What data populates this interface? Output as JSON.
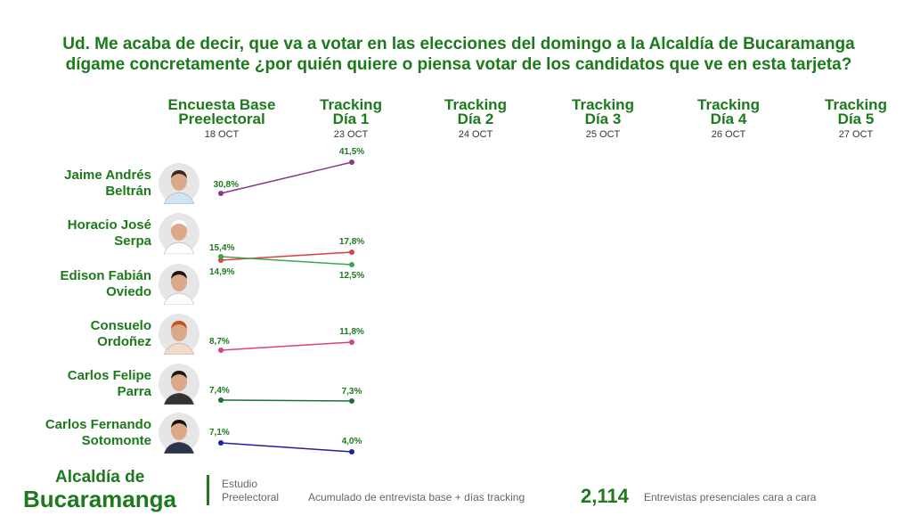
{
  "title": "Ud. Me acaba de decir, que va a votar en las elecciones del domingo a la Alcaldía de Bucaramanga dígame concretamente ¿por quién quiere o piensa votar de los candidatos que ve en esta tarjeta?",
  "columns": [
    {
      "line1": "Encuesta Base",
      "line2": "Preelectoral",
      "date": "18 OCT"
    },
    {
      "line1": "Tracking",
      "line2": "Día 1",
      "date": "23 OCT"
    },
    {
      "line1": "Tracking",
      "line2": "Día 2",
      "date": "24 OCT"
    },
    {
      "line1": "Tracking",
      "line2": "Día 3",
      "date": "25 OCT"
    },
    {
      "line1": "Tracking",
      "line2": "Día 4",
      "date": "26 OCT"
    },
    {
      "line1": "Tracking",
      "line2": "Día 5",
      "date": "27 OCT"
    }
  ],
  "candidates": [
    {
      "line1": "Jaime Andrés",
      "line2": "Beltrán",
      "photo": "jaime-andres-beltran-photo"
    },
    {
      "line1": "Horacio José",
      "line2": "Serpa",
      "photo": "horacio-jose-serpa-photo"
    },
    {
      "line1": "Edison Fabián",
      "line2": "Oviedo",
      "photo": "edison-fabian-oviedo-photo"
    },
    {
      "line1": "Consuelo",
      "line2": "Ordoñez",
      "photo": "consuelo-ordonez-photo"
    },
    {
      "line1": "Carlos Felipe",
      "line2": "Parra",
      "photo": "carlos-felipe-parra-photo"
    },
    {
      "line1": "Carlos Fernando",
      "line2": "Sotomonte",
      "photo": "carlos-fernando-sotomonte-photo"
    }
  ],
  "chart_data": {
    "type": "line",
    "x": [
      "18 OCT",
      "23 OCT"
    ],
    "ylim": [
      0,
      45
    ],
    "series": [
      {
        "name": "Jaime Andrés Beltrán",
        "values": [
          30.8,
          41.5
        ],
        "labels": [
          "30,8%",
          "41,5%"
        ],
        "color": "#8a3a8a"
      },
      {
        "name": "Horacio José Serpa",
        "values": [
          14.9,
          17.8
        ],
        "labels": [
          "14,9%",
          "17,8%"
        ],
        "color": "#d94040"
      },
      {
        "name": "Edison Fabián Oviedo",
        "values": [
          15.4,
          12.5
        ],
        "labels": [
          "15,4%",
          "12,5%"
        ],
        "color": "#3fa34d"
      },
      {
        "name": "Consuelo Ordoñez",
        "values": [
          8.7,
          11.8
        ],
        "labels": [
          "8,7%",
          "11,8%"
        ],
        "color": "#d8447a"
      },
      {
        "name": "Carlos Felipe Parra",
        "values": [
          7.4,
          7.3
        ],
        "labels": [
          "7,4%",
          "7,3%"
        ],
        "color": "#1f6e3c"
      },
      {
        "name": "Carlos Fernando Sotomonte",
        "values": [
          7.1,
          4.0
        ],
        "labels": [
          "7,1%",
          "4,0%"
        ],
        "color": "#1f1fa8"
      }
    ]
  },
  "footer": {
    "brand_line1": "Alcaldía de",
    "brand_line2": "Bucaramanga",
    "study": "Estudio Preelectoral",
    "accumulated": "Acumulado de entrevista base + días tracking",
    "total": "2,114",
    "method": "Entrevistas presenciales cara a cara"
  }
}
